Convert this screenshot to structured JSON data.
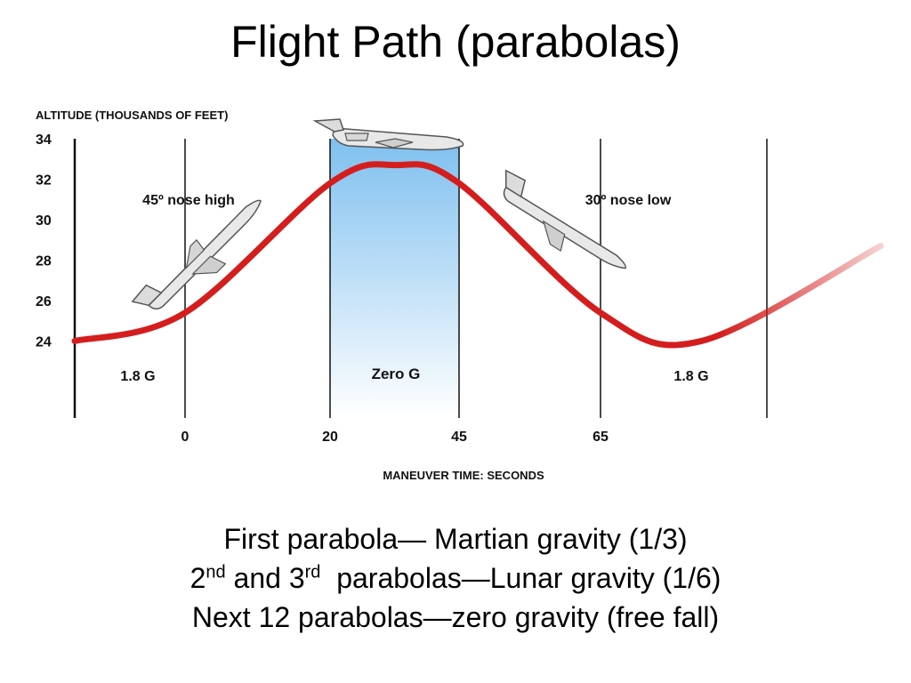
{
  "slide": {
    "title": "Flight Path (parabolas)",
    "caption": {
      "line1": "First parabola— Martian gravity (1/3)",
      "line2": {
        "part1": "2",
        "sup1": "nd",
        "part2": " and 3",
        "sup2": "rd",
        "part3": "  parabolas—Lunar gravity (1/6)"
      },
      "line3": "Next 12 parabolas—zero gravity (free fall)"
    }
  },
  "chart_data": {
    "type": "line",
    "ylabel": "ALTITUDE (THOUSANDS OF FEET)",
    "xlabel": "MANEUVER TIME: SECONDS",
    "y_ticks": [
      "34",
      "32",
      "30",
      "28",
      "26",
      "24"
    ],
    "y_tick_values": [
      34,
      32,
      30,
      28,
      26,
      24
    ],
    "ylim": [
      20.2,
      34
    ],
    "x_ticks": [
      "0",
      "20",
      "45",
      "65"
    ],
    "grid": true,
    "series": [
      {
        "color": "#d41e1e",
        "points": [
          {
            "x": "start",
            "y": 24.0
          },
          {
            "x": "0",
            "y": 25.4
          },
          {
            "x": "20",
            "y": 31.8
          },
          {
            "x": "peak",
            "y": 32.7
          },
          {
            "x": "45",
            "y": 31.8
          },
          {
            "x": "65",
            "y": 25.4
          },
          {
            "x": "trough",
            "y": 24.0
          },
          {
            "x": "end",
            "y": 28.7
          }
        ]
      }
    ],
    "zero_g_band": {
      "from": "20",
      "to": "45",
      "color": "#8ec8f2"
    },
    "annotations": [
      {
        "text": "45º nose high"
      },
      {
        "text": "30º nose low"
      },
      {
        "text": "1.8 G"
      },
      {
        "text": "Zero G"
      },
      {
        "text": "1.8 G"
      }
    ],
    "colors": {
      "curve": "#d41e1e",
      "grid": "#9a9a9a",
      "aircraft": "#e8e8e8"
    }
  }
}
